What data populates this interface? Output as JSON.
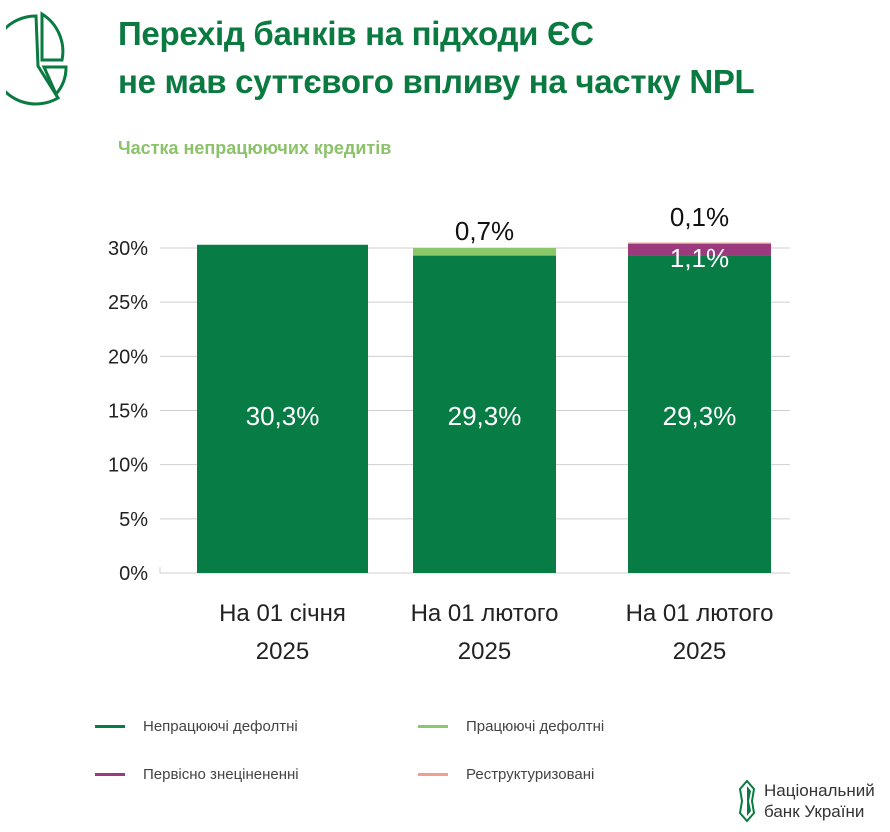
{
  "header": {
    "title_line1": "Перехід банків на підходи ЄС",
    "title_line2": "не мав суттєвого впливу на частку NPL",
    "icon": "pie-chart-icon"
  },
  "colors": {
    "title": "#0a7a41",
    "subtitle": "#8bc26a",
    "nonperforming_default": "#087c45",
    "performing_default": "#8bc86a",
    "poci": "#9c3a7e",
    "restructured": "#f0a090"
  },
  "chart_data": {
    "type": "bar",
    "stacked": true,
    "title": "Частка непрацюючих кредитів",
    "xlabel": "",
    "ylabel": "",
    "ylim": [
      0,
      30
    ],
    "yticks": [
      "0%",
      "5%",
      "10%",
      "15%",
      "20%",
      "25%",
      "30%"
    ],
    "ytick_values": [
      0,
      5,
      10,
      15,
      20,
      25,
      30
    ],
    "grid": true,
    "categories": [
      [
        "На 01 січня",
        "2025"
      ],
      [
        "На 01 лютого",
        "2025"
      ],
      [
        "На 01 лютого",
        "2025"
      ]
    ],
    "series": [
      {
        "name": "Непрацюючі дефолтні",
        "color": "#087c45",
        "values": [
          30.3,
          29.3,
          29.3
        ],
        "labels": [
          "30,3%",
          "29,3%",
          "29,3%"
        ]
      },
      {
        "name": "Працюючі дефолтні",
        "color": "#8bc86a",
        "values": [
          0,
          0.7,
          0
        ],
        "labels": [
          "",
          "0,7%",
          ""
        ]
      },
      {
        "name": "Первісно знецінененні",
        "color": "#9c3a7e",
        "values": [
          0,
          0,
          1.1
        ],
        "labels": [
          "",
          "",
          "1,1%"
        ]
      },
      {
        "name": "Реструктуризовані",
        "color": "#f0a090",
        "values": [
          0,
          0,
          0.1
        ],
        "labels": [
          "",
          "",
          "0,1%"
        ]
      }
    ],
    "legend_position": "bottom"
  },
  "legend": [
    {
      "label": "Непрацюючі дефолтні",
      "color": "#087c45"
    },
    {
      "label": "Працюючі дефолтні",
      "color": "#8bc86a"
    },
    {
      "label": "Первісно знецінененні",
      "color": "#9c3a7e"
    },
    {
      "label": "Реструктуризовані",
      "color": "#f0a090"
    }
  ],
  "footer": {
    "logo_line1": "Національний",
    "logo_line2": "банк України",
    "logo_icon": "nbu-logo-icon"
  }
}
